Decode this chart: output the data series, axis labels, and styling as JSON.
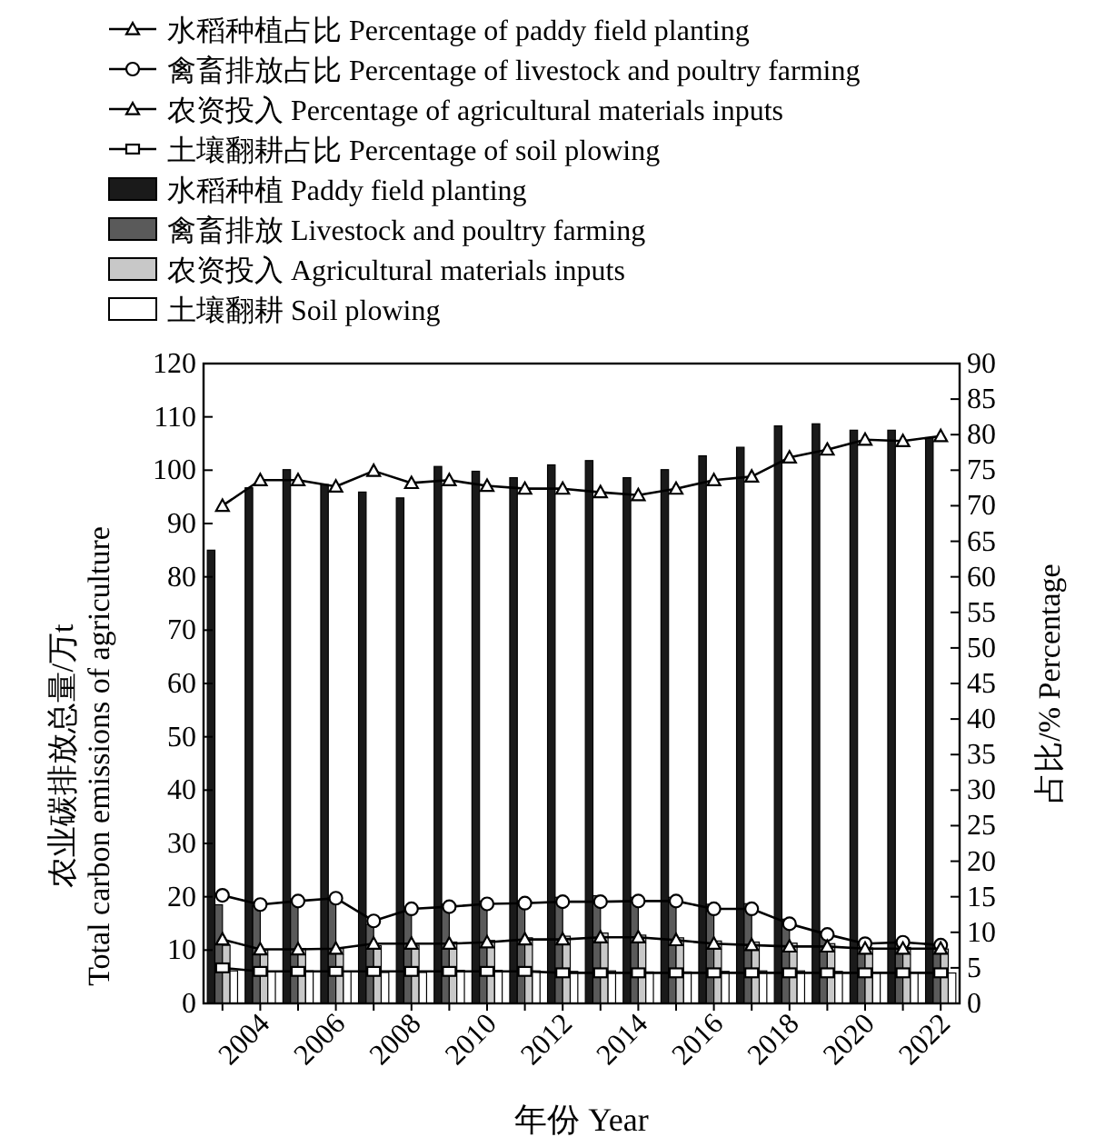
{
  "chart_data": {
    "type": "bar",
    "xlabel": "年份 Year",
    "ylabel": "农业碳排放总量/万t\nTotal carbon emissions of agriculture",
    "y2label": "占比/% Percentage",
    "categories": [
      null,
      "2004",
      null,
      "2006",
      null,
      "2008",
      null,
      "2010",
      null,
      "2012",
      null,
      "2014",
      null,
      "2016",
      null,
      "2018",
      null,
      "2020",
      null,
      "2022"
    ],
    "series": [
      {
        "name": "水稻种植占比 Percentage of paddy field planting",
        "type": "line",
        "axis": "y2",
        "color": "#000000",
        "marker": "triangle",
        "values": [
          70.0,
          73.6,
          73.6,
          72.7,
          74.9,
          73.2,
          73.6,
          72.8,
          72.4,
          72.4,
          71.9,
          71.5,
          72.4,
          73.6,
          74.1,
          76.8,
          77.9,
          79.3,
          79.1,
          79.8
        ]
      },
      {
        "name": "禽畜排放占比 Percentage of livestock and poultry farming",
        "type": "line",
        "axis": "y2",
        "color": "#000000",
        "marker": "circle",
        "values": [
          15.2,
          13.9,
          14.4,
          14.8,
          11.6,
          13.3,
          13.6,
          14.0,
          14.1,
          14.3,
          14.3,
          14.4,
          14.4,
          13.3,
          13.3,
          11.2,
          9.7,
          8.4,
          8.6,
          8.2
        ]
      },
      {
        "name": "农资投入 Percentage of agricultural materials inputs",
        "type": "line",
        "axis": "y2",
        "color": "#000000",
        "marker": "triangle",
        "values": [
          9.0,
          7.6,
          7.6,
          7.7,
          8.4,
          8.4,
          8.4,
          8.6,
          9.0,
          9.0,
          9.3,
          9.3,
          8.9,
          8.4,
          8.2,
          8.0,
          8.0,
          7.7,
          7.7,
          7.7
        ]
      },
      {
        "name": "土壤翻耕占比 Percentage of soil plowing",
        "type": "line",
        "axis": "y2",
        "color": "#000000",
        "marker": "square",
        "values": [
          5.0,
          4.5,
          4.5,
          4.5,
          4.5,
          4.5,
          4.5,
          4.5,
          4.5,
          4.3,
          4.3,
          4.3,
          4.3,
          4.3,
          4.3,
          4.3,
          4.3,
          4.3,
          4.3,
          4.3
        ]
      },
      {
        "name": "水稻种植 Paddy field planting",
        "color": "#1a1a1a",
        "values": [
          85.0,
          96.7,
          100.1,
          97.3,
          95.9,
          94.8,
          100.7,
          99.8,
          98.6,
          101.0,
          101.8,
          98.6,
          100.1,
          102.7,
          104.3,
          108.3,
          108.7,
          107.5,
          107.5,
          106.1
        ]
      },
      {
        "name": "禽畜排放 Livestock and poultry farming",
        "color": "#5a5a5a",
        "values": [
          18.5,
          18.3,
          19.6,
          19.8,
          14.8,
          17.2,
          18.6,
          19.2,
          19.2,
          19.9,
          20.2,
          19.9,
          19.9,
          18.6,
          18.7,
          15.8,
          13.5,
          11.4,
          11.7,
          10.9
        ]
      },
      {
        "name": "农资投入 Agricultural materials inputs",
        "color": "#c8c8c8",
        "values": [
          10.9,
          10.0,
          10.3,
          10.3,
          10.8,
          10.9,
          11.5,
          11.8,
          12.3,
          12.6,
          13.2,
          12.8,
          12.3,
          11.7,
          11.5,
          11.3,
          11.2,
          10.4,
          10.5,
          10.2
        ]
      },
      {
        "name": "土壤翻耕 Soil plowing",
        "color": "#ffffff",
        "values": [
          6.1,
          5.9,
          6.1,
          6.0,
          5.8,
          5.8,
          6.2,
          6.2,
          6.1,
          6.0,
          6.1,
          5.9,
          5.9,
          6.0,
          6.1,
          6.1,
          6.0,
          5.8,
          5.8,
          5.7
        ]
      }
    ],
    "ylim": [
      0,
      120
    ],
    "yticks": [
      0,
      10,
      20,
      30,
      40,
      50,
      60,
      70,
      80,
      90,
      100,
      110,
      120
    ],
    "y2lim": [
      0,
      90
    ],
    "y2ticks": [
      0,
      5,
      10,
      15,
      20,
      25,
      30,
      35,
      40,
      45,
      50,
      55,
      60,
      65,
      70,
      75,
      80,
      85,
      90
    ],
    "grid": false,
    "legend": "top"
  }
}
